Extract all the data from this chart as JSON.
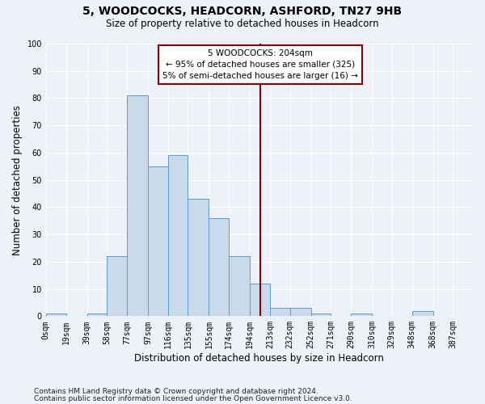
{
  "title": "5, WOODCOCKS, HEADCORN, ASHFORD, TN27 9HB",
  "subtitle": "Size of property relative to detached houses in Headcorn",
  "xlabel": "Distribution of detached houses by size in Headcorn",
  "ylabel": "Number of detached properties",
  "footnote1": "Contains HM Land Registry data © Crown copyright and database right 2024.",
  "footnote2": "Contains public sector information licensed under the Open Government Licence v3.0.",
  "bin_labels": [
    "0sqm",
    "19sqm",
    "39sqm",
    "58sqm",
    "77sqm",
    "97sqm",
    "116sqm",
    "135sqm",
    "155sqm",
    "174sqm",
    "194sqm",
    "213sqm",
    "232sqm",
    "252sqm",
    "271sqm",
    "290sqm",
    "310sqm",
    "329sqm",
    "348sqm",
    "368sqm",
    "387sqm"
  ],
  "bin_edges": [
    0,
    19,
    39,
    58,
    77,
    97,
    116,
    135,
    155,
    174,
    194,
    213,
    232,
    252,
    271,
    290,
    310,
    329,
    348,
    368,
    387,
    406
  ],
  "heights": [
    1,
    0,
    1,
    22,
    81,
    55,
    59,
    43,
    36,
    22,
    12,
    3,
    3,
    1,
    0,
    1,
    0,
    0,
    2,
    0,
    0
  ],
  "bar_color": "#c9daea",
  "bar_edge_color": "#5b9bd5",
  "vline_x": 204,
  "vline_color": "#8b0000",
  "ylim": [
    0,
    100
  ],
  "yticks": [
    0,
    10,
    20,
    30,
    40,
    50,
    60,
    70,
    80,
    90,
    100
  ],
  "annotation_title": "5 WOODCOCKS: 204sqm",
  "annotation_line1": "← 95% of detached houses are smaller (325)",
  "annotation_line2": "5% of semi-detached houses are larger (16) →",
  "annotation_box_color": "#8b0000",
  "background_color": "#eef2f8",
  "title_fontsize": 10,
  "subtitle_fontsize": 8.5,
  "tick_fontsize": 7,
  "axis_label_fontsize": 8.5,
  "footnote_fontsize": 6.5,
  "annotation_fontsize": 7.5
}
